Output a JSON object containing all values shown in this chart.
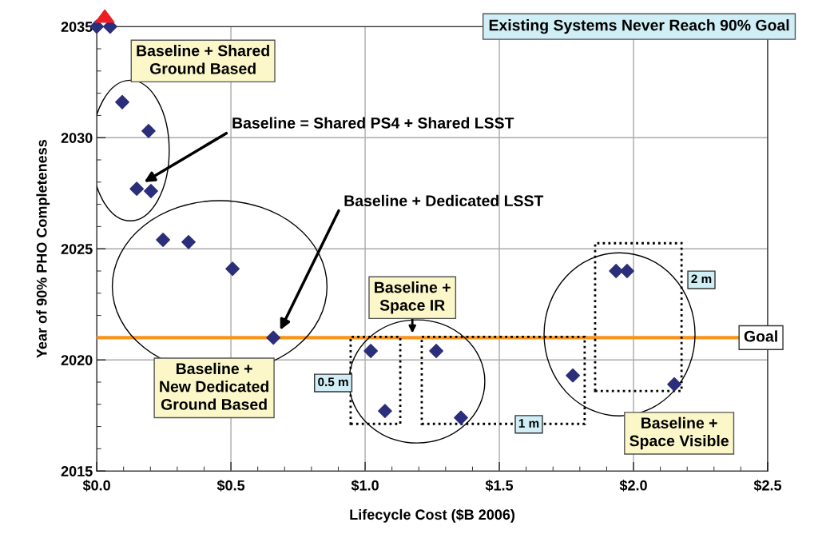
{
  "chart_data": {
    "type": "scatter",
    "title": "Existing Systems Never Reach 90% Goal",
    "xlabel": "Lifecycle Cost ($B 2006)",
    "ylabel": "Year of 90% PHO Completeness",
    "x": [
      0.0,
      0.05,
      0.095,
      0.193,
      0.149,
      0.202,
      0.247,
      0.342,
      0.506,
      0.658,
      1.021,
      1.074,
      1.265,
      1.357,
      1.774,
      1.935,
      1.976,
      2.152
    ],
    "series": [
      {
        "color": "#2b2e7a",
        "values": [
          2035,
          2035,
          2031.6,
          2030.3,
          2027.7,
          2027.6,
          2025.4,
          2025.3,
          2024.1,
          2021.0,
          2020.4,
          2017.7,
          2020.4,
          2017.4,
          2019.3,
          2024.0,
          2024.0,
          2018.9
        ]
      }
    ],
    "marker": "diamond",
    "grid": true,
    "legend": false,
    "xlim": [
      0,
      2.5
    ],
    "xticks": [
      {
        "value": 0,
        "label": "$0.0"
      },
      {
        "value": 0.5,
        "label": "$0.5"
      },
      {
        "value": 1.0,
        "label": "$1.0"
      },
      {
        "value": 1.5,
        "label": "$1.5"
      },
      {
        "value": 2.0,
        "label": "$2.0"
      },
      {
        "value": 2.5,
        "label": "$2.5"
      }
    ],
    "ylim": [
      2015,
      2035
    ],
    "yticks": [
      2015,
      2020,
      2025,
      2030,
      2035
    ],
    "ref_lines": [
      {
        "axis": "y",
        "value": 2021,
        "label": "Goal",
        "color": "#f7941d"
      }
    ],
    "annotations": [
      "Baseline + Shared\nGround Based",
      "Baseline = Shared PS4 + Shared LSST",
      "Baseline + Dedicated LSST",
      "Baseline +\nSpace IR",
      "Baseline +\nNew Dedicated\nGround Based",
      "Baseline +\nSpace Visible",
      "0.5 m",
      "1 m",
      "2 m"
    ]
  }
}
